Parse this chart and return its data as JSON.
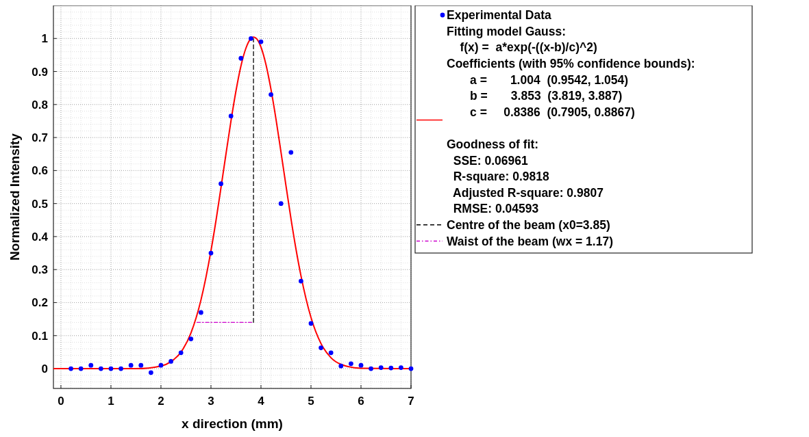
{
  "chart_data": {
    "type": "scatter",
    "xlabel": "x direction (mm)",
    "ylabel": "Normalized Intensity",
    "xlim": [
      -0.15,
      7
    ],
    "ylim": [
      -0.06,
      1.1
    ],
    "xticks": [
      0,
      1,
      2,
      3,
      4,
      5,
      6,
      7
    ],
    "yticks": [
      0,
      0.1,
      0.2,
      0.3,
      0.4,
      0.5,
      0.6,
      0.7,
      0.8,
      0.9,
      1
    ],
    "grid": true,
    "legend": "right",
    "marker": "circle",
    "series": [
      {
        "name": "Experimental Data",
        "color": "#0000ff",
        "x": [
          0.2,
          0.4,
          0.6,
          0.8,
          1.0,
          1.2,
          1.4,
          1.6,
          1.8,
          2.0,
          2.2,
          2.4,
          2.6,
          2.8,
          3.0,
          3.2,
          3.4,
          3.6,
          3.8,
          4.0,
          4.2,
          4.4,
          4.6,
          4.8,
          5.0,
          5.2,
          5.4,
          5.6,
          5.8,
          6.0,
          6.2,
          6.4,
          6.6,
          6.8,
          7.0
        ],
        "values": [
          0,
          0,
          0.01,
          0,
          0,
          0,
          0.01,
          0.01,
          -0.012,
          0.01,
          0.022,
          0.048,
          0.09,
          0.17,
          0.35,
          0.56,
          0.765,
          0.94,
          1.0,
          0.99,
          0.83,
          0.5,
          0.655,
          0.265,
          0.137,
          0.063,
          0.048,
          0.008,
          0.015,
          0.01,
          0,
          0.003,
          0.002,
          0.003,
          0
        ]
      },
      {
        "name": "Fitting model Gauss:\n    f(x) =  a*exp(-((x-b)/c)^2)\nCoefficients (with 95% confidence bounds):\n       a =       1.004  (0.9542, 1.054)\n       b =       3.853  (3.819, 3.887)\n       c =     0.8386  (0.7905, 0.8867)\n\nGoodness of fit:\n  SSE: 0.06961\n  R-square: 0.9818\n  Adjusted R-square: 0.9807\n  RMSE: 0.04593",
        "type": "line",
        "color": "#ff0000",
        "marker": "none",
        "line_style": "solid",
        "x": [
          -0.15,
          1.0,
          1.5,
          2.0,
          2.2,
          2.4,
          2.6,
          2.8,
          3.0,
          3.1,
          3.2,
          3.3,
          3.4,
          3.5,
          3.6,
          3.7,
          3.8,
          3.85,
          3.9,
          4.0,
          4.1,
          4.2,
          4.3,
          4.4,
          4.5,
          4.6,
          4.7,
          4.8,
          5.0,
          5.2,
          5.4,
          5.6,
          6.0,
          7.0
        ],
        "values": [
          0,
          0,
          0,
          0.008,
          0.021,
          0.05,
          0.108,
          0.208,
          0.357,
          0.448,
          0.548,
          0.65,
          0.75,
          0.841,
          0.917,
          0.971,
          1.0,
          1.004,
          1.001,
          0.974,
          0.921,
          0.846,
          0.756,
          0.656,
          0.554,
          0.454,
          0.362,
          0.281,
          0.155,
          0.076,
          0.033,
          0.013,
          0.001,
          0
        ]
      },
      {
        "name": "Centre of the beam (x0=3.85)",
        "type": "line",
        "color": "#000000",
        "marker": "none",
        "line_style": "dashed",
        "x": [
          3.85,
          3.85
        ],
        "values": [
          0.14,
          1.0
        ]
      },
      {
        "name": "Waist of the beam (wx = 1.17)",
        "type": "line",
        "color": "#cc00cc",
        "marker": "none",
        "line_style": "dashdot",
        "x": [
          2.72,
          3.85
        ],
        "values": [
          0.14,
          0.14
        ]
      }
    ]
  }
}
